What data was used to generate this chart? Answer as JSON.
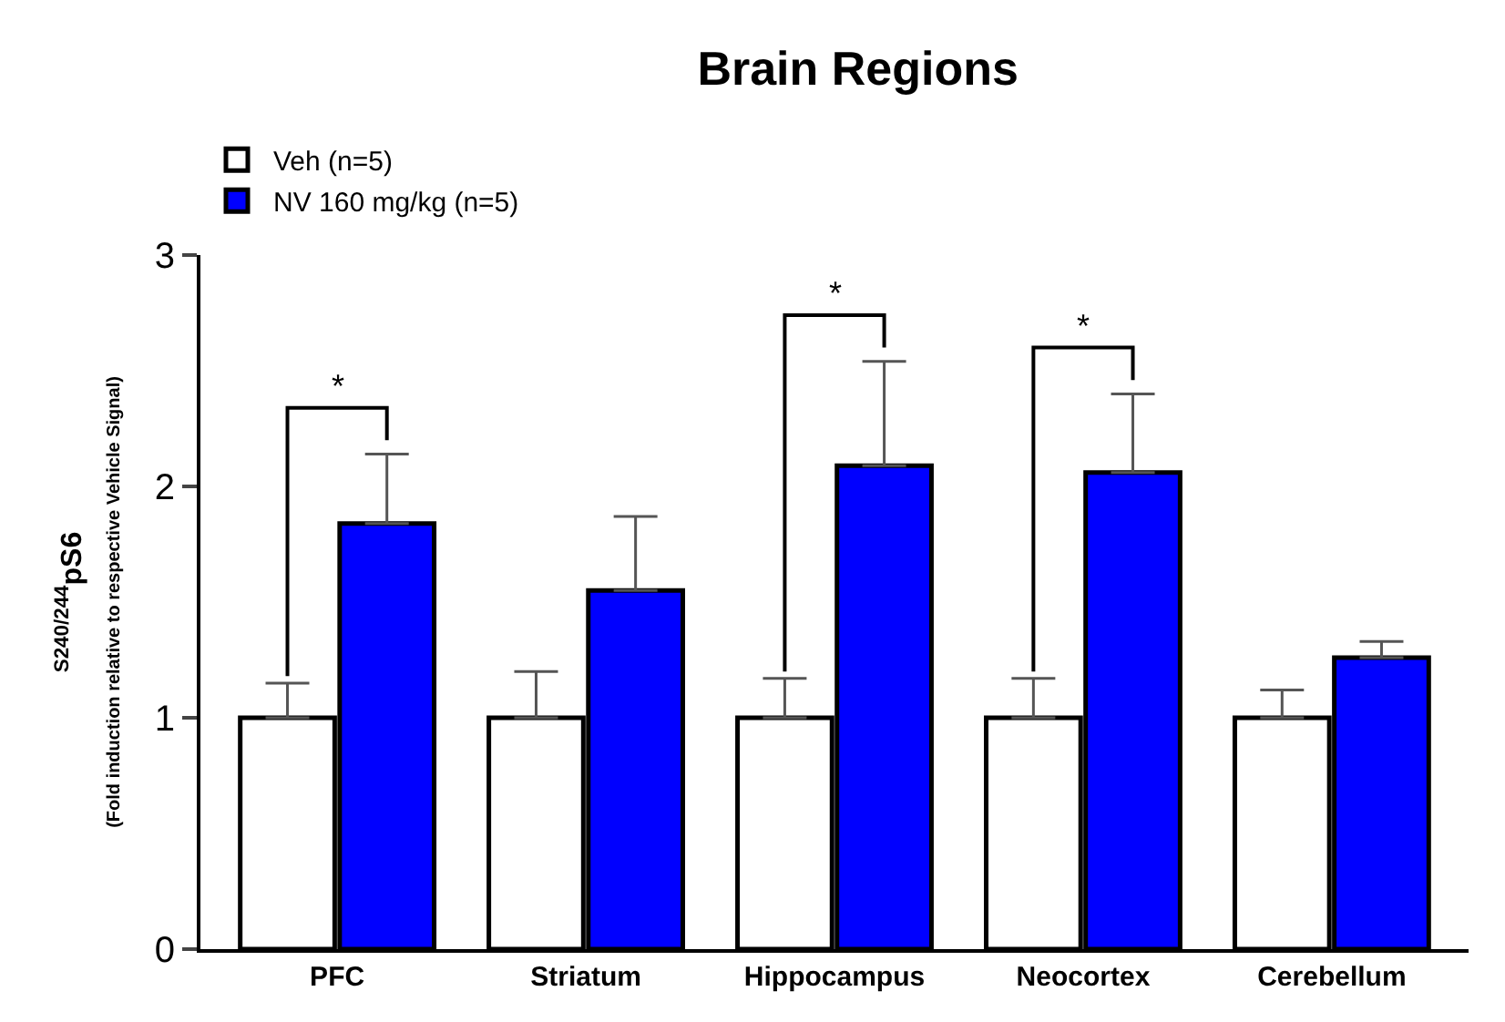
{
  "chart_data": {
    "type": "bar",
    "title": "Brain Regions",
    "ylabel": "$^{S240/244}$pS6\n(Fold induction relative to respective Vehicle Signal)",
    "categories": [
      "PFC",
      "Striatum",
      "Hippocampus",
      "Neocortex",
      "Cerebellum"
    ],
    "series": [
      {
        "name": "Veh (n=5)",
        "color": "#ffffff",
        "values": [
          1,
          1,
          1,
          1,
          1
        ],
        "errors": [
          [
            1,
            1.15
          ],
          [
            1,
            1.2
          ],
          [
            1,
            1.17
          ],
          [
            1,
            1.17
          ],
          [
            1,
            1.12
          ]
        ]
      },
      {
        "name": "NV 160 mg/kg (n=5)",
        "color": "#0000ff",
        "values": [
          1.84,
          1.55,
          2.09,
          2.06,
          1.26
        ],
        "errors": [
          [
            1.84,
            2.14
          ],
          [
            1.55,
            1.87
          ],
          [
            2.09,
            2.54
          ],
          [
            2.06,
            2.4
          ],
          [
            1.26,
            1.33
          ]
        ]
      }
    ],
    "annotations": [
      "*",
      "*",
      "*"
    ],
    "ylim": [
      0,
      3
    ],
    "yticks": [
      0,
      1,
      2,
      3
    ],
    "legend": "top left"
  }
}
